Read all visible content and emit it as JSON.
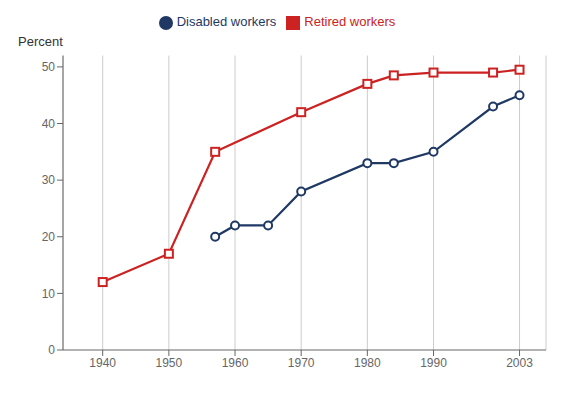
{
  "chart_data": {
    "type": "line",
    "ylabel": "Percent",
    "series": [
      {
        "name": "Retired workers",
        "color": "#cc2222",
        "marker": "square",
        "x": [
          1940,
          1950,
          1957,
          1970,
          1980,
          1984,
          1990,
          1999,
          2003
        ],
        "values": [
          12,
          17,
          35,
          42,
          47,
          48.5,
          49,
          49,
          49.5
        ]
      },
      {
        "name": "Disabled workers",
        "color": "#1f3864",
        "marker": "circle",
        "x": [
          1957,
          1960,
          1965,
          1970,
          1980,
          1984,
          1990,
          1999,
          2003
        ],
        "values": [
          20,
          22,
          22,
          28,
          33,
          33,
          35,
          43,
          45
        ]
      }
    ],
    "xlim": [
      1934,
      2007
    ],
    "ylim": [
      0,
      52
    ],
    "xticks": [
      1940,
      1950,
      1960,
      1970,
      1980,
      1990,
      2003
    ],
    "yticks": [
      0,
      10,
      20,
      30,
      40,
      50
    ],
    "grid": "x",
    "legend": "top"
  }
}
